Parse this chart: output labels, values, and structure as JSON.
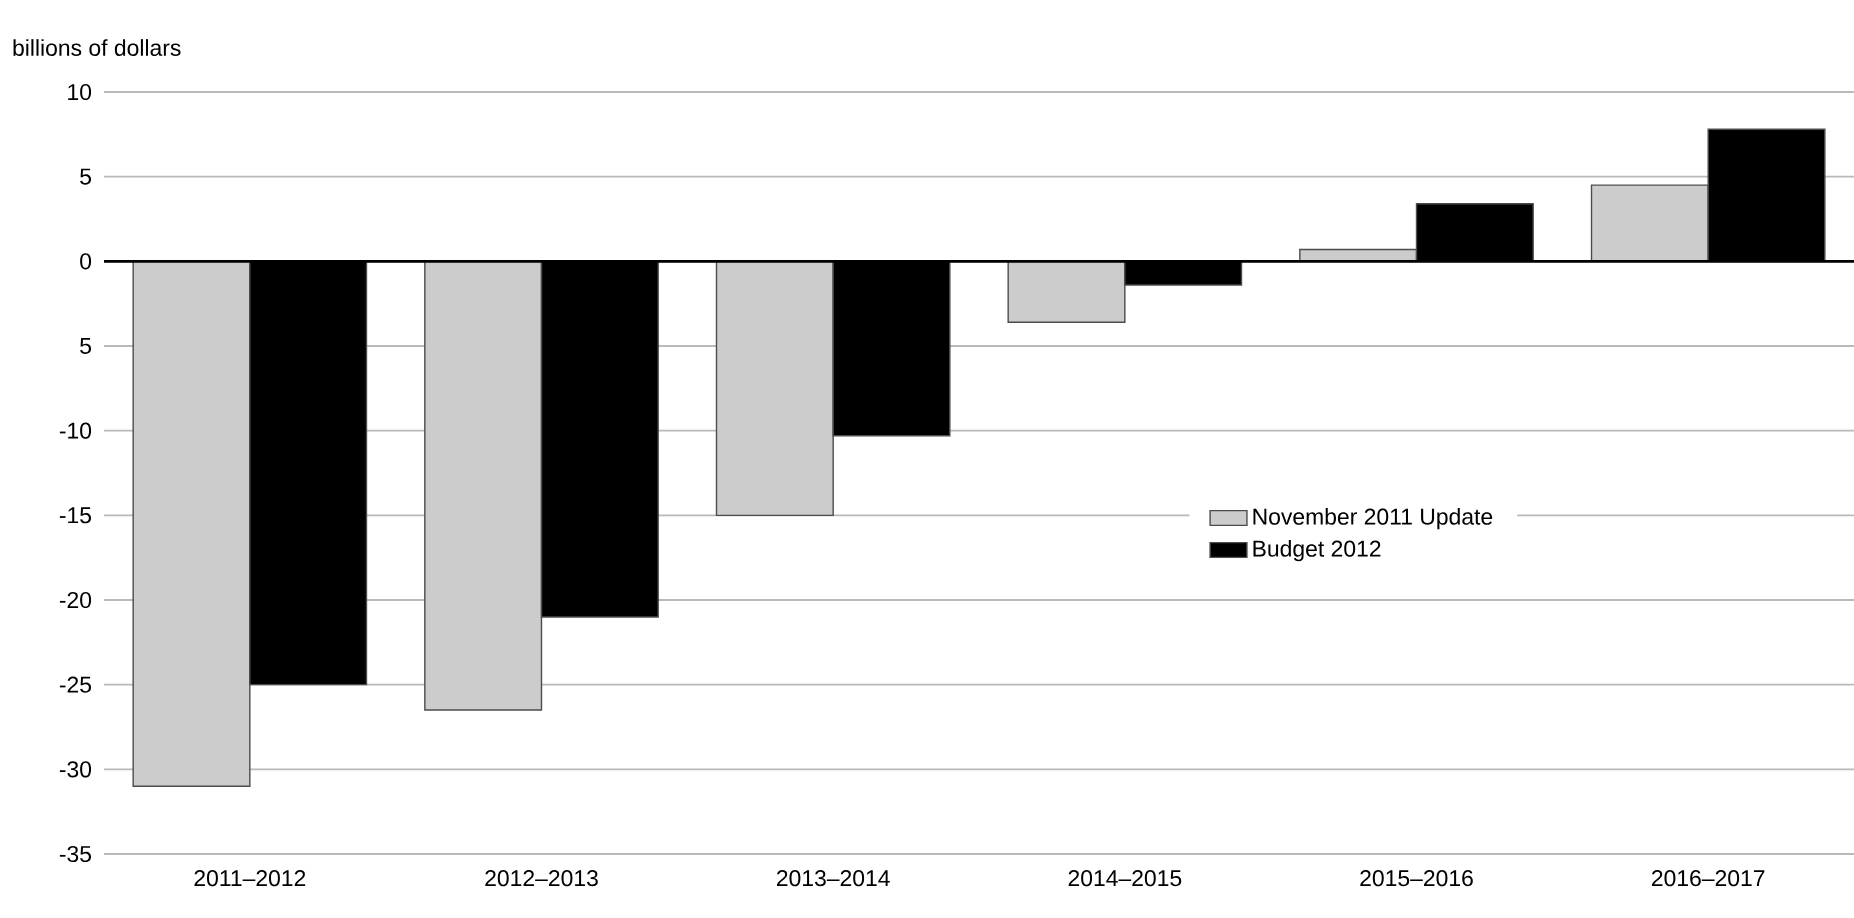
{
  "chart_data": {
    "type": "bar",
    "ylabel": "billions of dollars",
    "categories": [
      "2011–2012",
      "2012–2013",
      "2013–2014",
      "2014–2015",
      "2015–2016",
      "2016–2017"
    ],
    "series": [
      {
        "name": "November 2011 Update",
        "color": "#cccccc",
        "values": [
          -31.0,
          -26.5,
          -15.0,
          -3.6,
          0.7,
          4.5
        ]
      },
      {
        "name": "Budget 2012",
        "color": "#000000",
        "values": [
          -25.0,
          -21.0,
          -10.3,
          -1.4,
          3.4,
          7.8
        ]
      }
    ],
    "ylim": [
      -35,
      10
    ],
    "yticks": [
      10,
      5,
      0,
      {
        "value": -5,
        "label": "5"
      },
      -10,
      -15,
      -20,
      -25,
      -30,
      -35
    ],
    "grid": "y",
    "legend": "right"
  }
}
